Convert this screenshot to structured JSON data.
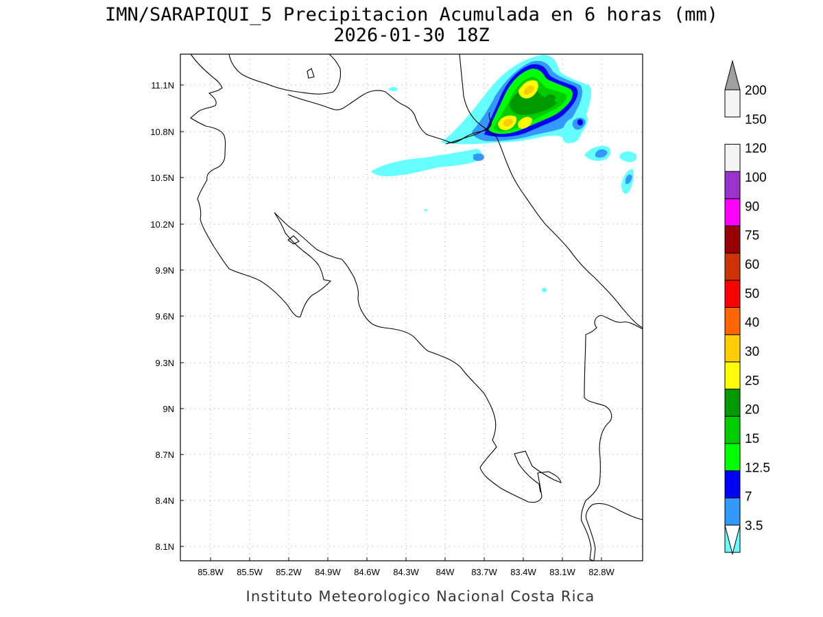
{
  "title": {
    "line1": "IMN/SARAPIQUI_5 Precipitacion Acumulada en 6 horas (mm)",
    "line2": "2026-01-30 18Z"
  },
  "footer": "Instituto Meteorologico Nacional Costa Rica",
  "map": {
    "lon_range": [
      -85.97,
      -82.4
    ],
    "lat_range": [
      8.0,
      11.3
    ],
    "lon_ticks": [
      "85.8W",
      "85.5W",
      "85.2W",
      "84.9W",
      "84.6W",
      "84.3W",
      "84W",
      "83.7W",
      "83.4W",
      "83.1W",
      "82.8W"
    ],
    "lat_ticks": [
      "8.1N",
      "8.4N",
      "8.7N",
      "9N",
      "9.3N",
      "9.6N",
      "9.9N",
      "10.2N",
      "10.5N",
      "10.8N",
      "11.1N"
    ],
    "grid": "dotted"
  },
  "colorbar": {
    "levels": [
      "3.5",
      "7",
      "12.5",
      "15",
      "20",
      "25",
      "30",
      "40",
      "50",
      "60",
      "75",
      "90",
      "100",
      "120",
      "150",
      "200"
    ],
    "colors": [
      "#66ffff",
      "#3399ff",
      "#0000ff",
      "#00ff00",
      "#00cc00",
      "#009900",
      "#ffff00",
      "#ffcc00",
      "#ff6600",
      "#ff0000",
      "#cc3300",
      "#990000",
      "#ff00ff",
      "#9933cc",
      "#f5f5f5",
      "#a0a0a0"
    ],
    "low_end_color": "#ffffff",
    "high_end_color": "#a0a0a0"
  },
  "precip_colors": {
    "c3_5": "#66ffff",
    "c7": "#3399ff",
    "c12_5": "#0000ff",
    "c15": "#00ff00",
    "c20": "#00cc00",
    "c25": "#009900",
    "c30": "#ffff00",
    "c40": "#ffcc00"
  }
}
